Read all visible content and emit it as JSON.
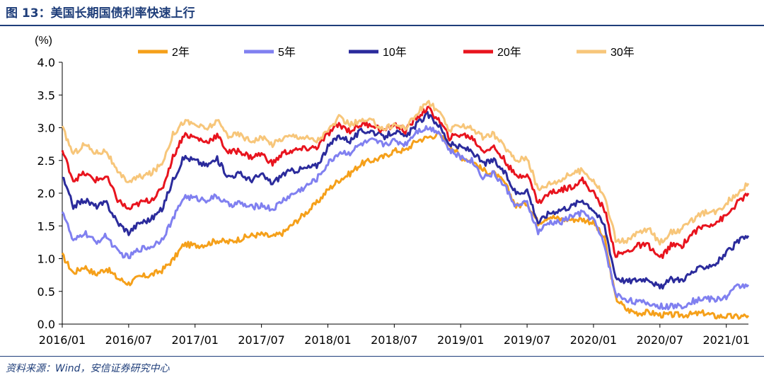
{
  "header": {
    "title": "图 13：美国长期国债利率快速上行"
  },
  "footer": {
    "source": "资料来源：Wind，安信证券研究中心"
  },
  "colors": {
    "title": "#1f3e7a"
  },
  "chart_data": {
    "type": "line",
    "title": "美国长期国债利率快速上行",
    "ylabel": "(%)",
    "xlabel": "",
    "ylim": [
      0.0,
      4.0
    ],
    "yticks": [
      0.0,
      0.5,
      1.0,
      1.5,
      2.0,
      2.5,
      3.0,
      3.5,
      4.0
    ],
    "ytick_labels": [
      "0.0",
      "0.5",
      "1.0",
      "1.5",
      "2.0",
      "2.5",
      "3.0",
      "3.5",
      "4.0"
    ],
    "xlim": [
      "2016/01",
      "2021/03"
    ],
    "xtick_labels": [
      "2016/01",
      "2016/07",
      "2017/01",
      "2017/07",
      "2018/01",
      "2018/07",
      "2019/01",
      "2019/07",
      "2020/01",
      "2020/07",
      "2021/01"
    ],
    "legend_position": "top",
    "grid": false,
    "x": [
      "2016/01",
      "2016/02",
      "2016/03",
      "2016/04",
      "2016/05",
      "2016/06",
      "2016/07",
      "2016/08",
      "2016/09",
      "2016/10",
      "2016/11",
      "2016/12",
      "2017/01",
      "2017/02",
      "2017/03",
      "2017/04",
      "2017/05",
      "2017/06",
      "2017/07",
      "2017/08",
      "2017/09",
      "2017/10",
      "2017/11",
      "2017/12",
      "2018/01",
      "2018/02",
      "2018/03",
      "2018/04",
      "2018/05",
      "2018/06",
      "2018/07",
      "2018/08",
      "2018/09",
      "2018/10",
      "2018/11",
      "2018/12",
      "2019/01",
      "2019/02",
      "2019/03",
      "2019/04",
      "2019/05",
      "2019/06",
      "2019/07",
      "2019/08",
      "2019/09",
      "2019/10",
      "2019/11",
      "2019/12",
      "2020/01",
      "2020/02",
      "2020/03",
      "2020/04",
      "2020/05",
      "2020/06",
      "2020/07",
      "2020/08",
      "2020/09",
      "2020/10",
      "2020/11",
      "2020/12",
      "2021/01",
      "2021/02",
      "2021/03"
    ],
    "series": [
      {
        "name": "2年",
        "color": "#f5a01a",
        "values": [
          1.05,
          0.78,
          0.88,
          0.76,
          0.85,
          0.7,
          0.62,
          0.72,
          0.75,
          0.82,
          0.98,
          1.22,
          1.2,
          1.22,
          1.28,
          1.25,
          1.3,
          1.35,
          1.37,
          1.33,
          1.4,
          1.55,
          1.7,
          1.85,
          2.05,
          2.2,
          2.3,
          2.45,
          2.5,
          2.55,
          2.65,
          2.65,
          2.8,
          2.85,
          2.9,
          2.75,
          2.55,
          2.5,
          2.35,
          2.3,
          2.15,
          1.8,
          1.85,
          1.55,
          1.65,
          1.6,
          1.6,
          1.6,
          1.55,
          1.3,
          0.4,
          0.22,
          0.17,
          0.18,
          0.14,
          0.14,
          0.14,
          0.15,
          0.17,
          0.12,
          0.12,
          0.11,
          0.13
        ]
      },
      {
        "name": "5年",
        "color": "#8080f0",
        "values": [
          1.75,
          1.25,
          1.4,
          1.25,
          1.35,
          1.1,
          1.02,
          1.15,
          1.18,
          1.3,
          1.6,
          1.95,
          1.92,
          1.9,
          1.95,
          1.82,
          1.85,
          1.78,
          1.82,
          1.75,
          1.9,
          2.0,
          2.1,
          2.22,
          2.45,
          2.62,
          2.62,
          2.75,
          2.8,
          2.75,
          2.8,
          2.75,
          2.95,
          3.0,
          2.95,
          2.65,
          2.55,
          2.5,
          2.25,
          2.3,
          2.1,
          1.8,
          1.85,
          1.4,
          1.55,
          1.55,
          1.65,
          1.7,
          1.6,
          1.2,
          0.45,
          0.38,
          0.33,
          0.32,
          0.27,
          0.27,
          0.28,
          0.35,
          0.4,
          0.37,
          0.42,
          0.58,
          0.6
        ]
      },
      {
        "name": "10年",
        "color": "#2b2b9c",
        "values": [
          2.25,
          1.8,
          1.9,
          1.8,
          1.85,
          1.55,
          1.4,
          1.55,
          1.6,
          1.75,
          2.2,
          2.55,
          2.5,
          2.42,
          2.52,
          2.25,
          2.3,
          2.2,
          2.28,
          2.15,
          2.3,
          2.35,
          2.38,
          2.42,
          2.7,
          2.88,
          2.8,
          2.95,
          2.95,
          2.85,
          2.95,
          2.85,
          3.05,
          3.2,
          3.05,
          2.75,
          2.7,
          2.65,
          2.45,
          2.5,
          2.3,
          2.0,
          2.05,
          1.55,
          1.7,
          1.75,
          1.8,
          1.9,
          1.75,
          1.5,
          0.72,
          0.65,
          0.68,
          0.7,
          0.55,
          0.68,
          0.68,
          0.8,
          0.88,
          0.92,
          1.08,
          1.25,
          1.35
        ]
      },
      {
        "name": "20年",
        "color": "#e8141e",
        "values": [
          2.65,
          2.2,
          2.3,
          2.2,
          2.25,
          1.9,
          1.75,
          1.85,
          1.9,
          2.05,
          2.55,
          2.9,
          2.85,
          2.78,
          2.88,
          2.62,
          2.65,
          2.55,
          2.6,
          2.45,
          2.62,
          2.65,
          2.68,
          2.7,
          2.9,
          3.05,
          2.95,
          3.05,
          3.05,
          2.95,
          3.05,
          2.95,
          3.15,
          3.3,
          3.12,
          2.85,
          2.9,
          2.85,
          2.65,
          2.7,
          2.5,
          2.25,
          2.3,
          1.85,
          2.0,
          2.05,
          2.1,
          2.2,
          2.0,
          1.75,
          1.05,
          1.1,
          1.2,
          1.2,
          1.0,
          1.2,
          1.2,
          1.4,
          1.5,
          1.55,
          1.65,
          1.85,
          2.0
        ]
      },
      {
        "name": "30年",
        "color": "#f7c67a",
        "values": [
          3.0,
          2.6,
          2.75,
          2.62,
          2.65,
          2.3,
          2.18,
          2.25,
          2.3,
          2.45,
          2.9,
          3.1,
          3.05,
          2.98,
          3.1,
          2.88,
          2.9,
          2.8,
          2.85,
          2.75,
          2.85,
          2.88,
          2.85,
          2.8,
          2.95,
          3.15,
          3.05,
          3.1,
          3.1,
          2.98,
          3.05,
          3.0,
          3.2,
          3.4,
          3.25,
          2.95,
          3.05,
          3.0,
          2.85,
          2.9,
          2.7,
          2.5,
          2.55,
          2.05,
          2.15,
          2.2,
          2.3,
          2.35,
          2.2,
          1.95,
          1.3,
          1.25,
          1.4,
          1.45,
          1.25,
          1.4,
          1.45,
          1.6,
          1.7,
          1.7,
          1.85,
          2.0,
          2.15
        ]
      }
    ]
  }
}
